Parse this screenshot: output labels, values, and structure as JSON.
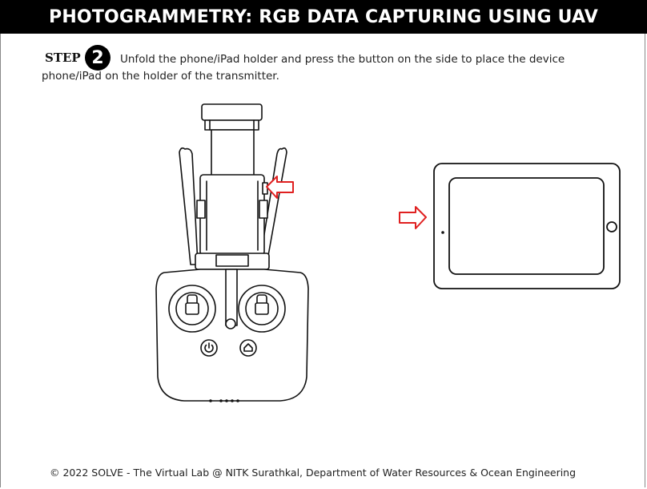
{
  "header": {
    "title": "PHOTOGRAMMETRY: RGB DATA CAPTURING USING UAV"
  },
  "step": {
    "label": "STEP",
    "number": "2",
    "instruction": "Unfold the phone/iPad holder and press the button on the side to place the device phone/iPad on the holder of the transmitter."
  },
  "illustration": {
    "arrow_color": "#e02020",
    "icons": [
      "transmitter-icon",
      "tablet-icon",
      "power-icon",
      "return-home-icon"
    ]
  },
  "footer": {
    "copyright": "© 2022 SOLVE - The Virtual Lab @ NITK Surathkal, Department of Water Resources & Ocean Engineering"
  }
}
